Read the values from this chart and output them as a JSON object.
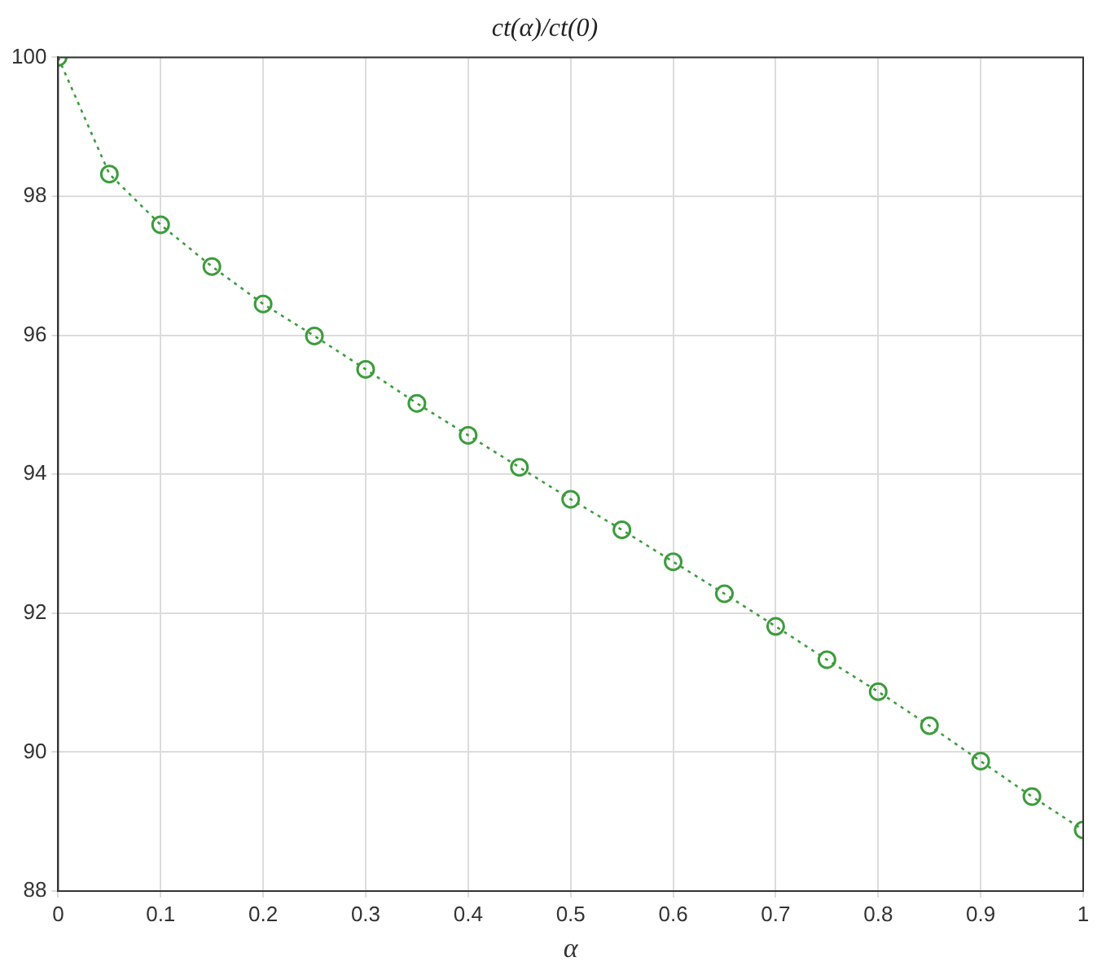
{
  "chart_data": {
    "type": "line",
    "title": "ct(α)/ct(0)",
    "xlabel": "α",
    "x": [
      0,
      0.05,
      0.1,
      0.15,
      0.2,
      0.25,
      0.3,
      0.35,
      0.4,
      0.45,
      0.5,
      0.55,
      0.6,
      0.65,
      0.7,
      0.75,
      0.8,
      0.85,
      0.9,
      0.95,
      1
    ],
    "series": [
      {
        "color": "#3c9c3c",
        "values": [
          100,
          98.32,
          97.59,
          96.99,
          96.45,
          95.99,
          95.51,
          95.02,
          94.56,
          94.1,
          93.64,
          93.2,
          92.74,
          92.28,
          91.81,
          91.33,
          90.87,
          90.38,
          89.87,
          89.36,
          88.88
        ]
      }
    ],
    "xlim": [
      0,
      1
    ],
    "xticks": [
      0,
      0.1,
      0.2,
      0.3,
      0.4,
      0.5,
      0.6,
      0.7,
      0.8,
      0.9,
      1
    ],
    "ylim": [
      88,
      100
    ],
    "yticks": [
      88,
      90,
      92,
      94,
      96,
      98,
      100
    ],
    "grid": true,
    "legend": false,
    "marker": "circle",
    "line_style": "dotted"
  }
}
